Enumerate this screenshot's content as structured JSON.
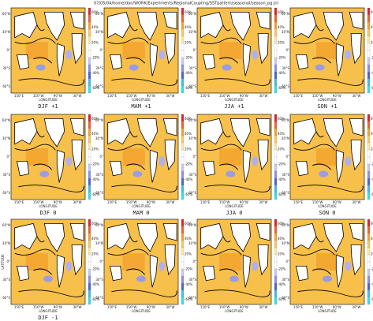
{
  "header": "07/05/04/home/dan/WORK/Experiments/RegionalCoupling/SSTpattern/seasonal/season_pg.jnl",
  "x_axis_label": "LONGITUDE",
  "y_axis_label": "LATITUDE",
  "lon_ticks": [
    "150°E",
    "150°W",
    "90°W",
    "30°W"
  ],
  "lat_ticks": [
    "60°N",
    "30°N",
    "0°",
    "30°S",
    "60°S"
  ],
  "colorbar_ticks": [
    "60%",
    "40%",
    "20%",
    "-20%",
    "-40%",
    "-60%"
  ],
  "panels": [
    {
      "label": "DJF +1"
    },
    {
      "label": "MAM +1"
    },
    {
      "label": "JJA +1"
    },
    {
      "label": "SON +1"
    },
    {
      "label": "DJF 0"
    },
    {
      "label": "MAM 0"
    },
    {
      "label": "JJA 0"
    },
    {
      "label": "SON 0"
    },
    {
      "label": "DJF -1"
    },
    {
      "label": null
    },
    {
      "label": null
    },
    {
      "label": null
    }
  ]
}
